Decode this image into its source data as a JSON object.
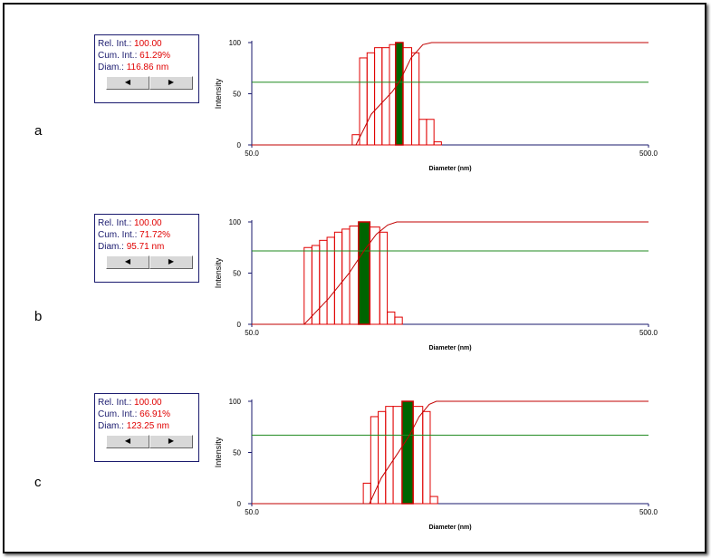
{
  "panels": [
    {
      "letter": "a",
      "rel_int_label": "Rel. Int.:",
      "rel_int_value": "100.00",
      "cum_int_label": "Cum. Int.:",
      "cum_int_value": "61.29%",
      "diam_label": "Diam.:",
      "diam_value": "116.86 nm",
      "prev_icon": "left-arrow-icon",
      "next_icon": "right-arrow-icon"
    },
    {
      "letter": "b",
      "rel_int_label": "Rel. Int.:",
      "rel_int_value": "100.00",
      "cum_int_label": "Cum. Int.:",
      "cum_int_value": "71.72%",
      "diam_label": "Diam.:",
      "diam_value": "95.71 nm",
      "prev_icon": "left-arrow-icon",
      "next_icon": "right-arrow-icon"
    },
    {
      "letter": "c",
      "rel_int_label": "Rel. Int.:",
      "rel_int_value": "100.00",
      "cum_int_label": "Cum. Int.:",
      "cum_int_value": "66.91%",
      "diam_label": "Diam.:",
      "diam_value": "123.25 nm",
      "prev_icon": "left-arrow-icon",
      "next_icon": "right-arrow-icon"
    }
  ],
  "colors": {
    "bar": "#e00000",
    "selected_bar": "#006400",
    "cumulative": "#c00000",
    "marker_line": "#1f8a1f",
    "axis": "#1a1a6e"
  },
  "chart_data": [
    {
      "type": "bar",
      "xscale": "log",
      "xlabel": "Diameter (nm)",
      "ylabel": "Intensity",
      "xlim": [
        50.0,
        500.0
      ],
      "ylim": [
        0,
        100
      ],
      "xtick_labels": [
        "50.0",
        "500.0"
      ],
      "ytick_labels": [
        "0",
        "50",
        "100"
      ],
      "bars": [
        {
          "x": 91.5,
          "value": 10
        },
        {
          "x": 95.5,
          "value": 85
        },
        {
          "x": 99.8,
          "value": 90
        },
        {
          "x": 104.2,
          "value": 95
        },
        {
          "x": 108.8,
          "value": 95
        },
        {
          "x": 113.6,
          "value": 98
        },
        {
          "x": 116.86,
          "value": 100,
          "selected": true
        },
        {
          "x": 123.8,
          "value": 95
        },
        {
          "x": 129.2,
          "value": 90
        },
        {
          "x": 134.9,
          "value": 25
        },
        {
          "x": 140.9,
          "value": 25
        },
        {
          "x": 147.1,
          "value": 3
        }
      ],
      "marker_value": 61.29,
      "cumulative": [
        {
          "x": 50,
          "y": 0
        },
        {
          "x": 91.5,
          "y": 0
        },
        {
          "x": 100,
          "y": 30
        },
        {
          "x": 113,
          "y": 52
        },
        {
          "x": 118,
          "y": 62
        },
        {
          "x": 126,
          "y": 85
        },
        {
          "x": 135,
          "y": 98
        },
        {
          "x": 142,
          "y": 100
        },
        {
          "x": 500,
          "y": 100
        }
      ]
    },
    {
      "type": "bar",
      "xscale": "log",
      "xlabel": "Diameter (nm)",
      "ylabel": "Intensity",
      "xlim": [
        50.0,
        500.0
      ],
      "ylim": [
        0,
        100
      ],
      "xtick_labels": [
        "50.0",
        "500.0"
      ],
      "ytick_labels": [
        "0",
        "50",
        "100"
      ],
      "bars": [
        {
          "x": 69.3,
          "value": 75
        },
        {
          "x": 72.5,
          "value": 77
        },
        {
          "x": 75.7,
          "value": 82
        },
        {
          "x": 79.1,
          "value": 85
        },
        {
          "x": 82.6,
          "value": 90
        },
        {
          "x": 86.3,
          "value": 93
        },
        {
          "x": 90.2,
          "value": 96
        },
        {
          "x": 95.71,
          "value": 100,
          "selected": true
        },
        {
          "x": 102.8,
          "value": 95
        },
        {
          "x": 107.4,
          "value": 90
        },
        {
          "x": 112.2,
          "value": 12
        },
        {
          "x": 117.2,
          "value": 7
        }
      ],
      "marker_value": 71.72,
      "cumulative": [
        {
          "x": 50,
          "y": 0
        },
        {
          "x": 67.8,
          "y": 0
        },
        {
          "x": 78,
          "y": 25
        },
        {
          "x": 88,
          "y": 50
        },
        {
          "x": 96,
          "y": 72
        },
        {
          "x": 103,
          "y": 88
        },
        {
          "x": 110,
          "y": 97
        },
        {
          "x": 116,
          "y": 100
        },
        {
          "x": 500,
          "y": 100
        }
      ]
    },
    {
      "type": "bar",
      "xscale": "log",
      "xlabel": "Diameter (nm)",
      "ylabel": "Intensity",
      "xlim": [
        50.0,
        500.0
      ],
      "ylim": [
        0,
        100
      ],
      "xtick_labels": [
        "50.0",
        "500.0"
      ],
      "ytick_labels": [
        "0",
        "50",
        "100"
      ],
      "bars": [
        {
          "x": 97.6,
          "value": 20
        },
        {
          "x": 101.9,
          "value": 85
        },
        {
          "x": 106.4,
          "value": 90
        },
        {
          "x": 111.1,
          "value": 95
        },
        {
          "x": 116.1,
          "value": 95
        },
        {
          "x": 123.25,
          "value": 100,
          "selected": true
        },
        {
          "x": 132.0,
          "value": 95
        },
        {
          "x": 137.8,
          "value": 90
        },
        {
          "x": 143.9,
          "value": 7
        }
      ],
      "marker_value": 66.91,
      "cumulative": [
        {
          "x": 50,
          "y": 0
        },
        {
          "x": 99,
          "y": 0
        },
        {
          "x": 106,
          "y": 25
        },
        {
          "x": 118,
          "y": 52
        },
        {
          "x": 125,
          "y": 67
        },
        {
          "x": 132,
          "y": 85
        },
        {
          "x": 140,
          "y": 97
        },
        {
          "x": 146,
          "y": 100
        },
        {
          "x": 500,
          "y": 100
        }
      ]
    }
  ]
}
